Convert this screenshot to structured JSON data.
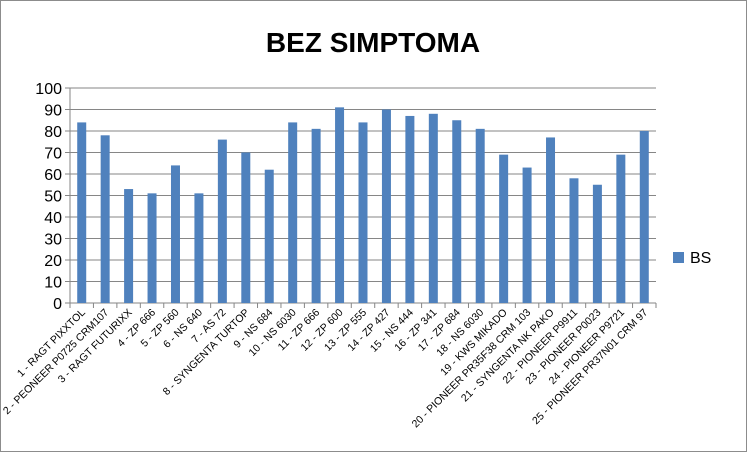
{
  "chart_data": {
    "type": "bar",
    "title": "BEZ SIMPTOMA",
    "xlabel": "",
    "ylabel": "",
    "ylim": [
      0,
      100
    ],
    "yticks": [
      0,
      10,
      20,
      30,
      40,
      50,
      60,
      70,
      80,
      90,
      100
    ],
    "grid": true,
    "legend_position": "right",
    "categories": [
      "1 - RAGT PIXXTOL",
      "2 - PEONEER P0725 CRM107",
      "3 - RAGT FUTURIXX",
      "4 - ZP 666",
      "5 - ZP 560",
      "6 - NS 640",
      "7 - AS 72",
      "8 - SYNGENTA TURTOP",
      "9 - NS 684",
      "10 - NS 6030",
      "11 - ZP 666",
      "12 - ZP 600",
      "13 - ZP 555",
      "14 - ZP 427",
      "15 - NS 444",
      "16 - ZP 341",
      "17 - ZP 684",
      "18 - NS 6030",
      "19 - KWS MIKADO",
      "20 - PIONEER PR35F38 CRM 103",
      "21 - SYNGENTA NK PAKO",
      "22 - PIONEER P9911",
      "23 - PIONEER P0023",
      "24 - PIONEER P9721",
      "25 - PIONEER PR37N01 CRM 97"
    ],
    "series": [
      {
        "name": "BS",
        "color": "#4f81bd",
        "values": [
          84,
          78,
          53,
          51,
          64,
          51,
          76,
          70,
          62,
          84,
          81,
          91,
          84,
          90,
          87,
          88,
          85,
          81,
          69,
          63,
          77,
          58,
          55,
          69,
          80
        ]
      }
    ]
  }
}
